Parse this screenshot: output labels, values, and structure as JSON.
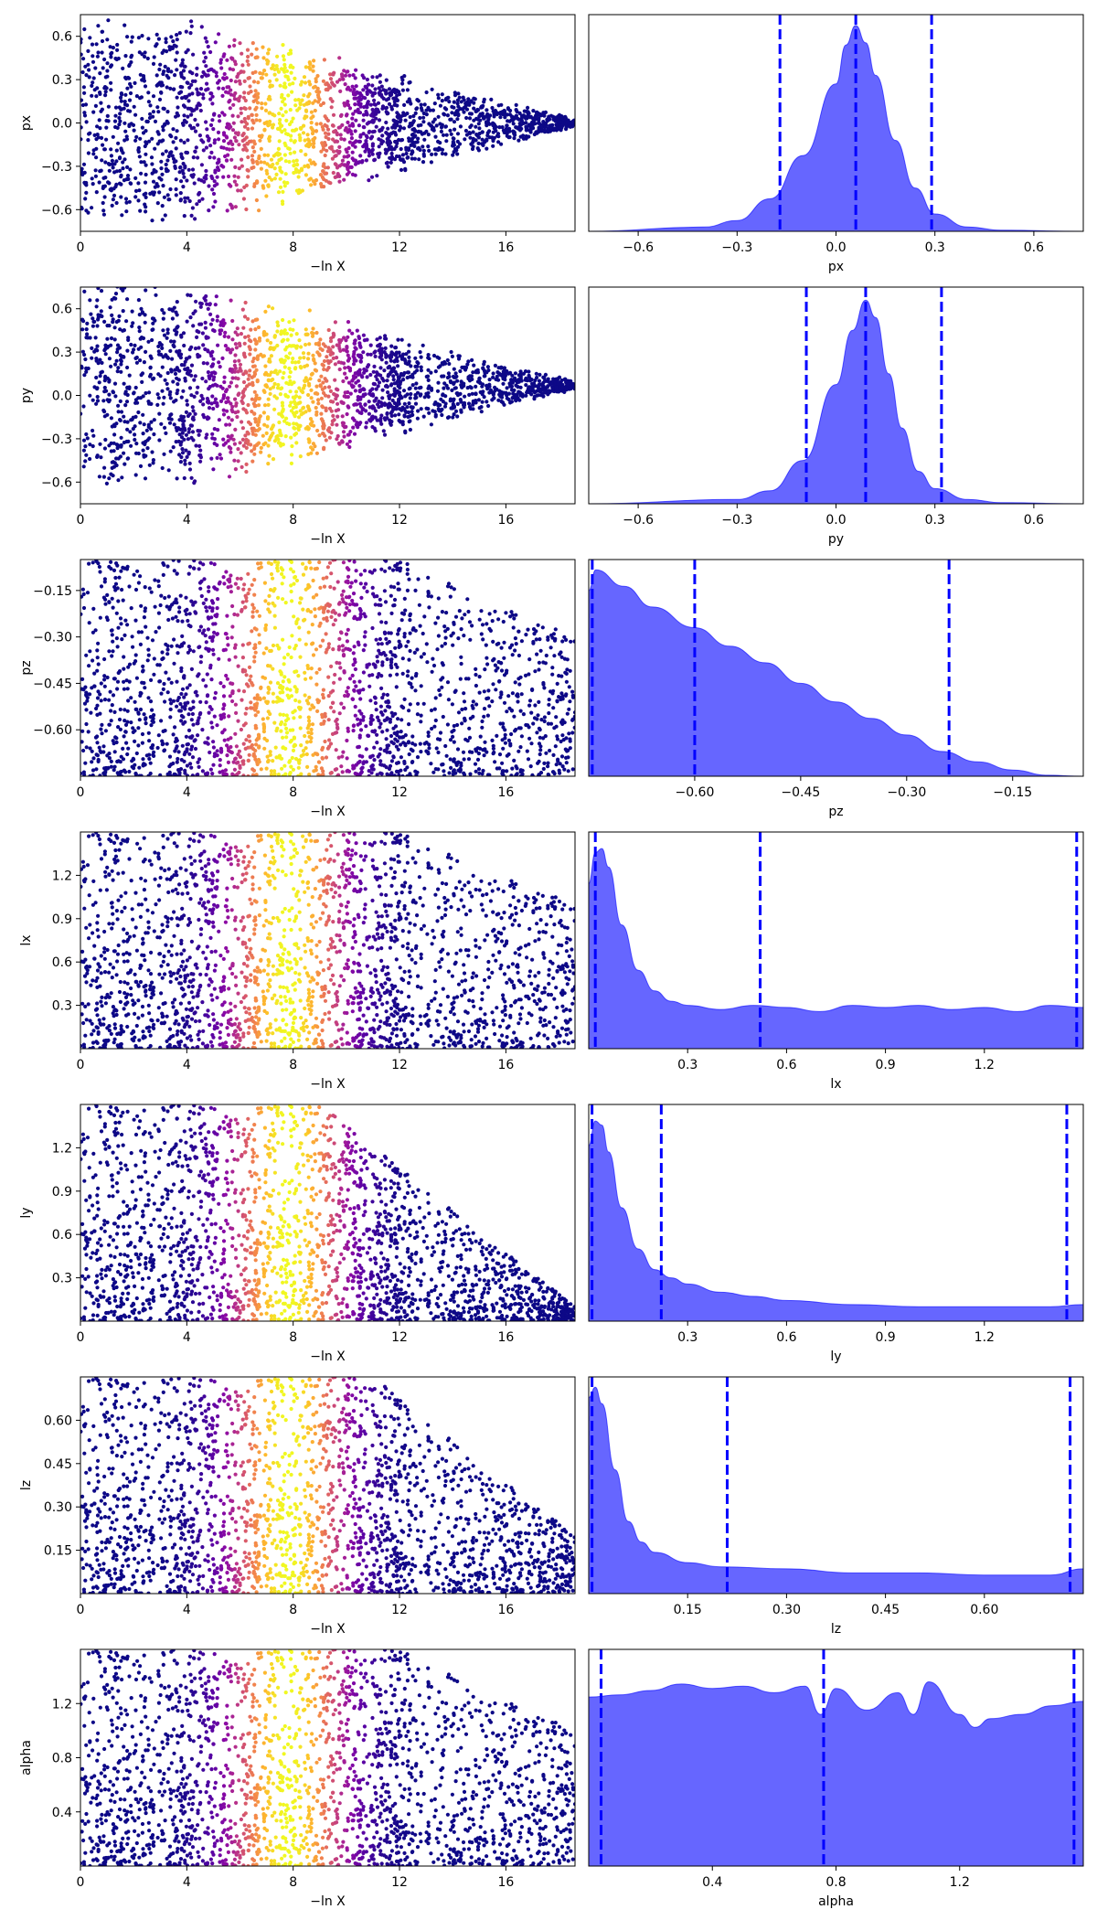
{
  "chart_data": [
    {
      "type": "scatter",
      "param": "px",
      "xlabel": "−ln X",
      "ylabel": "px",
      "xlim": [
        0,
        18.6
      ],
      "ylim": [
        -0.75,
        0.75
      ],
      "xticks": [
        0,
        4,
        8,
        12,
        16
      ],
      "xticklabels": [
        "0",
        "4",
        "8",
        "12",
        "16"
      ],
      "yticks": [
        -0.6,
        -0.3,
        0.0,
        0.3,
        0.6
      ],
      "yticklabels": [
        "−0.6",
        "−0.3",
        "0.0",
        "0.3",
        "0.6"
      ],
      "colormap": "plasma",
      "trace": {
        "peak_x": 7.8,
        "center": 0.0,
        "spread_start": 0.75,
        "spread_end": 0.03,
        "narrow_from": 4,
        "max_x": 18.6,
        "shape": "funnel"
      }
    },
    {
      "type": "area",
      "param": "px",
      "xlabel": "px",
      "xlim": [
        -0.75,
        0.75
      ],
      "xticks": [
        -0.6,
        -0.3,
        0.0,
        0.3,
        0.6
      ],
      "xticklabels": [
        "−0.6",
        "−0.3",
        "0.0",
        "0.3",
        "0.6"
      ],
      "density": {
        "x": [
          -0.75,
          -0.4,
          -0.3,
          -0.2,
          -0.1,
          0.0,
          0.03,
          0.06,
          0.09,
          0.12,
          0.18,
          0.24,
          0.3,
          0.4,
          0.5,
          0.75
        ],
        "y": [
          0,
          0.02,
          0.05,
          0.15,
          0.35,
          0.68,
          0.86,
          0.95,
          0.87,
          0.72,
          0.42,
          0.2,
          0.08,
          0.02,
          0.005,
          0
        ]
      },
      "ymax": 1.0,
      "quantiles": [
        -0.17,
        0.06,
        0.29
      ],
      "fill_color": "#6666ff",
      "line_color": "#0000ff"
    },
    {
      "type": "scatter",
      "param": "py",
      "xlabel": "−ln X",
      "ylabel": "py",
      "xlim": [
        0,
        18.6
      ],
      "ylim": [
        -0.75,
        0.75
      ],
      "xticks": [
        0,
        4,
        8,
        12,
        16
      ],
      "xticklabels": [
        "0",
        "4",
        "8",
        "12",
        "16"
      ],
      "yticks": [
        -0.6,
        -0.3,
        0.0,
        0.3,
        0.6
      ],
      "yticklabels": [
        "−0.6",
        "−0.3",
        "0.0",
        "0.3",
        "0.6"
      ],
      "colormap": "plasma",
      "trace": {
        "peak_x": 7.8,
        "center": 0.07,
        "spread_start": 0.75,
        "spread_end": 0.03,
        "narrow_from": 4,
        "max_x": 18.6,
        "shape": "funnel"
      }
    },
    {
      "type": "area",
      "param": "py",
      "xlabel": "py",
      "xlim": [
        -0.75,
        0.75
      ],
      "xticks": [
        -0.6,
        -0.3,
        0.0,
        0.3,
        0.6
      ],
      "xticklabels": [
        "−0.6",
        "−0.3",
        "0.0",
        "0.3",
        "0.6"
      ],
      "density": {
        "x": [
          -0.75,
          -0.3,
          -0.2,
          -0.1,
          0.0,
          0.05,
          0.09,
          0.12,
          0.16,
          0.2,
          0.25,
          0.3,
          0.4,
          0.5,
          0.75
        ],
        "y": [
          0,
          0.02,
          0.06,
          0.2,
          0.55,
          0.8,
          0.94,
          0.86,
          0.6,
          0.35,
          0.15,
          0.07,
          0.02,
          0.005,
          0
        ]
      },
      "ymax": 1.0,
      "quantiles": [
        -0.09,
        0.09,
        0.32
      ],
      "fill_color": "#6666ff",
      "line_color": "#0000ff"
    },
    {
      "type": "scatter",
      "param": "pz",
      "xlabel": "−ln X",
      "ylabel": "pz",
      "xlim": [
        0,
        18.6
      ],
      "ylim": [
        -0.75,
        -0.05
      ],
      "xticks": [
        0,
        4,
        8,
        12,
        16
      ],
      "xticklabels": [
        "0",
        "4",
        "8",
        "12",
        "16"
      ],
      "yticks": [
        -0.6,
        -0.45,
        -0.3,
        -0.15
      ],
      "yticklabels": [
        "−0.60",
        "−0.45",
        "−0.30",
        "−0.15"
      ],
      "colormap": "plasma",
      "trace": {
        "peak_x": 7.8,
        "center": -0.75,
        "spread_start": 0.7,
        "spread_end": 0.45,
        "narrow_from": 12,
        "max_x": 18.6,
        "shape": "floor"
      }
    },
    {
      "type": "area",
      "param": "pz",
      "xlabel": "pz",
      "xlim": [
        -0.75,
        -0.05
      ],
      "xticks": [
        -0.6,
        -0.45,
        -0.3,
        -0.15
      ],
      "xticklabels": [
        "−0.60",
        "−0.45",
        "−0.30",
        "−0.15"
      ],
      "density": {
        "x": [
          -0.75,
          -0.74,
          -0.7,
          -0.66,
          -0.6,
          -0.55,
          -0.5,
          -0.45,
          -0.4,
          -0.35,
          -0.3,
          -0.25,
          -0.2,
          -0.15,
          -0.1,
          -0.05
        ],
        "y": [
          0.9,
          1.0,
          0.92,
          0.82,
          0.72,
          0.63,
          0.55,
          0.45,
          0.36,
          0.28,
          0.2,
          0.12,
          0.07,
          0.03,
          0.005,
          0
        ]
      },
      "ymax": 1.05,
      "quantiles": [
        -0.745,
        -0.6,
        -0.24
      ],
      "fill_color": "#6666ff",
      "line_color": "#0000ff"
    },
    {
      "type": "scatter",
      "param": "lx",
      "xlabel": "−ln X",
      "ylabel": "lx",
      "xlim": [
        0,
        18.6
      ],
      "ylim": [
        0.0,
        1.5
      ],
      "xticks": [
        0,
        4,
        8,
        12,
        16
      ],
      "xticklabels": [
        "0",
        "4",
        "8",
        "12",
        "16"
      ],
      "yticks": [
        0.3,
        0.6,
        0.9,
        1.2
      ],
      "yticklabels": [
        "0.3",
        "0.6",
        "0.9",
        "1.2"
      ],
      "colormap": "plasma",
      "trace": {
        "peak_x": 7.8,
        "center": 0.0,
        "spread_start": 1.5,
        "spread_end": 1.0,
        "narrow_from": 12,
        "max_x": 18.6,
        "shape": "floor"
      }
    },
    {
      "type": "area",
      "param": "lx",
      "xlabel": "lx",
      "xlim": [
        0.0,
        1.5
      ],
      "xticks": [
        0.3,
        0.6,
        0.9,
        1.2
      ],
      "xticklabels": [
        "0.3",
        "0.6",
        "0.9",
        "1.2"
      ],
      "density": {
        "x": [
          0.0,
          0.02,
          0.04,
          0.06,
          0.1,
          0.15,
          0.2,
          0.25,
          0.3,
          0.4,
          0.5,
          0.6,
          0.7,
          0.8,
          0.9,
          1.0,
          1.1,
          1.2,
          1.3,
          1.4,
          1.5
        ],
        "y": [
          0.8,
          0.95,
          0.97,
          0.88,
          0.6,
          0.38,
          0.28,
          0.23,
          0.21,
          0.19,
          0.21,
          0.2,
          0.18,
          0.21,
          0.2,
          0.21,
          0.19,
          0.2,
          0.18,
          0.21,
          0.2
        ]
      },
      "ymax": 1.05,
      "quantiles": [
        0.02,
        0.52,
        1.48
      ],
      "fill_color": "#6666ff",
      "line_color": "#0000ff"
    },
    {
      "type": "scatter",
      "param": "ly",
      "xlabel": "−ln X",
      "ylabel": "ly",
      "xlim": [
        0,
        18.6
      ],
      "ylim": [
        0.0,
        1.5
      ],
      "xticks": [
        0,
        4,
        8,
        12,
        16
      ],
      "xticklabels": [
        "0",
        "4",
        "8",
        "12",
        "16"
      ],
      "yticks": [
        0.3,
        0.6,
        0.9,
        1.2
      ],
      "yticklabels": [
        "0.3",
        "0.6",
        "0.9",
        "1.2"
      ],
      "colormap": "plasma",
      "trace": {
        "peak_x": 7.8,
        "center": 0.0,
        "spread_start": 1.5,
        "spread_end": 0.1,
        "narrow_from": 9,
        "max_x": 18.6,
        "shape": "floor"
      }
    },
    {
      "type": "area",
      "param": "ly",
      "xlabel": "ly",
      "xlim": [
        0.0,
        1.5
      ],
      "xticks": [
        0.3,
        0.6,
        0.9,
        1.2
      ],
      "xticklabels": [
        "0.3",
        "0.6",
        "0.9",
        "1.2"
      ],
      "density": {
        "x": [
          0.0,
          0.02,
          0.04,
          0.06,
          0.1,
          0.15,
          0.2,
          0.25,
          0.3,
          0.4,
          0.5,
          0.6,
          0.8,
          1.0,
          1.2,
          1.4,
          1.5
        ],
        "y": [
          0.85,
          0.97,
          0.95,
          0.82,
          0.55,
          0.35,
          0.25,
          0.21,
          0.18,
          0.14,
          0.12,
          0.1,
          0.08,
          0.07,
          0.07,
          0.07,
          0.08
        ]
      },
      "ymax": 1.05,
      "quantiles": [
        0.01,
        0.22,
        1.45
      ],
      "fill_color": "#6666ff",
      "line_color": "#0000ff"
    },
    {
      "type": "scatter",
      "param": "lz",
      "xlabel": "−ln X",
      "ylabel": "lz",
      "xlim": [
        0,
        18.6
      ],
      "ylim": [
        0.0,
        0.75
      ],
      "xticks": [
        0,
        4,
        8,
        12,
        16
      ],
      "xticklabels": [
        "0",
        "4",
        "8",
        "12",
        "16"
      ],
      "yticks": [
        0.15,
        0.3,
        0.45,
        0.6
      ],
      "yticklabels": [
        "0.15",
        "0.30",
        "0.45",
        "0.60"
      ],
      "colormap": "plasma",
      "trace": {
        "peak_x": 7.8,
        "center": 0.0,
        "spread_start": 0.75,
        "spread_end": 0.2,
        "narrow_from": 11,
        "max_x": 18.6,
        "shape": "floor"
      }
    },
    {
      "type": "area",
      "param": "lz",
      "xlabel": "lz",
      "xlim": [
        0.0,
        0.75
      ],
      "xticks": [
        0.15,
        0.3,
        0.45,
        0.6
      ],
      "xticklabels": [
        "0.15",
        "0.30",
        "0.45",
        "0.60"
      ],
      "density": {
        "x": [
          0.0,
          0.01,
          0.02,
          0.04,
          0.06,
          0.08,
          0.1,
          0.15,
          0.2,
          0.3,
          0.4,
          0.5,
          0.6,
          0.7,
          0.75
        ],
        "y": [
          0.95,
          1.0,
          0.92,
          0.6,
          0.35,
          0.25,
          0.2,
          0.15,
          0.13,
          0.12,
          0.1,
          0.1,
          0.09,
          0.09,
          0.12
        ]
      },
      "ymax": 1.05,
      "quantiles": [
        0.005,
        0.21,
        0.73
      ],
      "fill_color": "#6666ff",
      "line_color": "#0000ff"
    },
    {
      "type": "scatter",
      "param": "alpha",
      "xlabel": "−ln X",
      "ylabel": "alpha",
      "xlim": [
        0,
        18.6
      ],
      "ylim": [
        0.0,
        1.6
      ],
      "xticks": [
        0,
        4,
        8,
        12,
        16
      ],
      "xticklabels": [
        "0",
        "4",
        "8",
        "12",
        "16"
      ],
      "yticks": [
        0.4,
        0.8,
        1.2
      ],
      "yticklabels": [
        "0.4",
        "0.8",
        "1.2"
      ],
      "colormap": "plasma",
      "trace": {
        "peak_x": 7.8,
        "center": 0.0,
        "spread_start": 1.6,
        "spread_end": 1.0,
        "narrow_from": 12,
        "max_x": 18.6,
        "shape": "floor"
      }
    },
    {
      "type": "area",
      "param": "alpha",
      "xlabel": "alpha",
      "xlim": [
        0.0,
        1.6
      ],
      "xticks": [
        0.4,
        0.8,
        1.2
      ],
      "xticklabels": [
        "0.4",
        "0.8",
        "1.2"
      ],
      "density": {
        "x": [
          0.0,
          0.1,
          0.2,
          0.3,
          0.4,
          0.5,
          0.6,
          0.7,
          0.75,
          0.8,
          0.9,
          1.0,
          1.05,
          1.1,
          1.2,
          1.25,
          1.3,
          1.4,
          1.5,
          1.6
        ],
        "y": [
          0.78,
          0.79,
          0.81,
          0.84,
          0.82,
          0.83,
          0.8,
          0.83,
          0.7,
          0.82,
          0.72,
          0.8,
          0.7,
          0.85,
          0.7,
          0.64,
          0.68,
          0.7,
          0.74,
          0.76
        ]
      },
      "ymax": 1.0,
      "quantiles": [
        0.04,
        0.76,
        1.57
      ],
      "fill_color": "#6666ff",
      "line_color": "#0000ff"
    }
  ]
}
